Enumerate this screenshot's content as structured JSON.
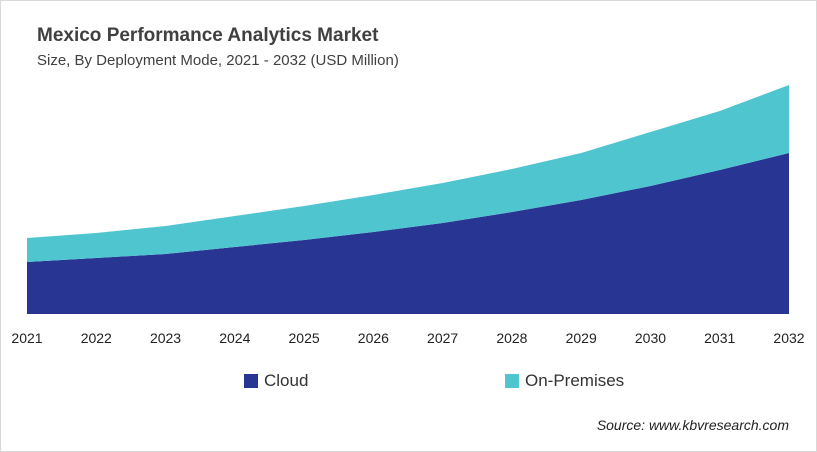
{
  "chart_data": {
    "type": "area",
    "stacked": true,
    "title": "Mexico Performance Analytics Market",
    "subtitle": "Size, By Deployment Mode, 2021 - 2032 (USD Million)",
    "xlabel": "",
    "ylabel": "",
    "categories": [
      "2021",
      "2022",
      "2023",
      "2024",
      "2025",
      "2026",
      "2027",
      "2028",
      "2029",
      "2030",
      "2031",
      "2032"
    ],
    "series": [
      {
        "name": "Cloud",
        "color": "#283593",
        "values": [
          52,
          56,
          60,
          67,
          74,
          82,
          91,
          102,
          114,
          128,
          144,
          161
        ]
      },
      {
        "name": "On-Premises",
        "color": "#4fc6cf",
        "values": [
          24,
          25,
          28,
          31,
          34,
          37,
          40,
          43,
          47,
          54,
          59,
          68
        ]
      }
    ],
    "ylim": [
      0,
      240
    ],
    "grid": false,
    "legend_position": "bottom",
    "source": "Source: www.kbvresearch.com"
  }
}
